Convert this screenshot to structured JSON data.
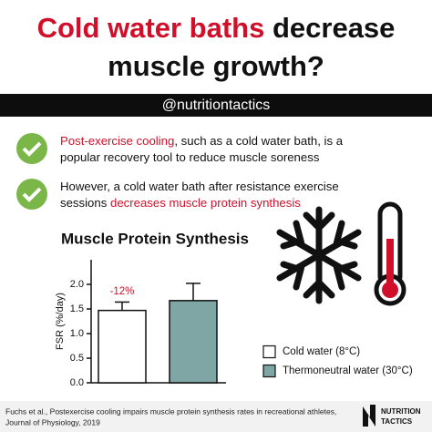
{
  "header": {
    "title_line1": [
      "Cold water baths",
      "decrease"
    ],
    "title_line2": "muscle growth?",
    "handle": "@nutritiontactics"
  },
  "bullets": [
    {
      "lines": [
        [
          "Post-exercise cooling",
          ", such as a cold water bath, is a"
        ],
        [
          "popular recovery tool to reduce muscle soreness"
        ]
      ]
    },
    {
      "lines": [
        [
          "However, a cold water bath after resistance exercise"
        ],
        [
          "sessions ",
          "decreases muscle protein synthesis"
        ]
      ]
    }
  ],
  "chart_data": {
    "type": "bar",
    "title": "Muscle Protein Synthesis",
    "y_label": "FSR (%/day)",
    "categories": [
      "Cold water (8°C)",
      "Thermoneutral water (30°C)"
    ],
    "values": [
      1.47,
      1.67
    ],
    "errors": [
      0.17,
      0.35
    ],
    "colors": [
      "#ffffff",
      "#7fa5a5"
    ],
    "ylim": [
      0,
      2.5
    ],
    "yticks": [
      {
        "value": 0,
        "label": "0.0"
      },
      {
        "value": 0.5,
        "label": "0.5"
      },
      {
        "value": 1,
        "label": "1.0"
      },
      {
        "value": 1.5,
        "label": "1.5"
      },
      {
        "value": 2,
        "label": "2.0"
      }
    ],
    "annotation": "-12%"
  },
  "footer": {
    "citation_lines": [
      "Fuchs et al., Postexercise cooling impairs muscle protein synthesis rates in recreational athletes,",
      "Journal of Physiology, 2019"
    ],
    "logo_lines": [
      "NUTRITION",
      "TACTICS"
    ]
  }
}
